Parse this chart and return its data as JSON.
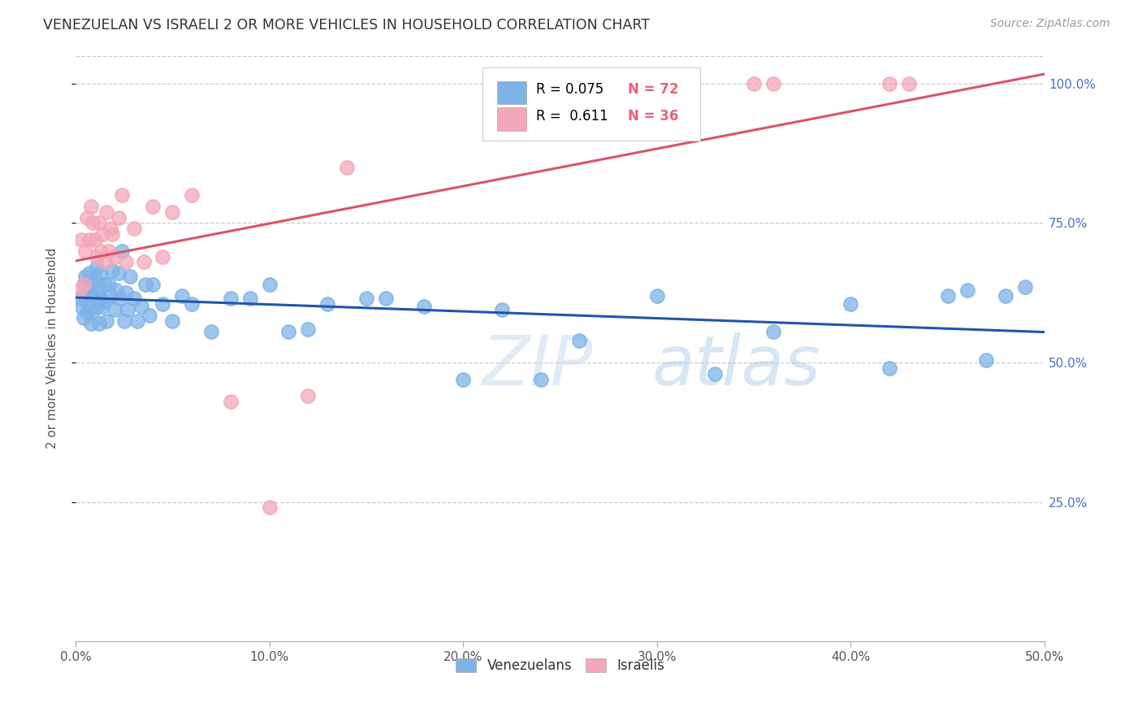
{
  "title": "VENEZUELAN VS ISRAELI 2 OR MORE VEHICLES IN HOUSEHOLD CORRELATION CHART",
  "source": "Source: ZipAtlas.com",
  "ylabel": "2 or more Vehicles in Household",
  "x_min": 0.0,
  "x_max": 0.5,
  "y_min": 0.0,
  "y_max": 1.05,
  "x_ticks": [
    0.0,
    0.1,
    0.2,
    0.3,
    0.4,
    0.5
  ],
  "x_tick_labels": [
    "0.0%",
    "10.0%",
    "20.0%",
    "30.0%",
    "40.0%",
    "50.0%"
  ],
  "y_ticks": [
    0.25,
    0.5,
    0.75,
    1.0
  ],
  "y_tick_labels": [
    "25.0%",
    "50.0%",
    "75.0%",
    "100.0%"
  ],
  "venezuelan_color": "#7EB3E8",
  "israeli_color": "#F4A7B9",
  "venezuelan_line_color": "#2255AA",
  "israeli_line_color": "#D9546A",
  "watermark": "ZIPatlas",
  "venezuelan_x": [
    0.002,
    0.003,
    0.004,
    0.004,
    0.005,
    0.005,
    0.006,
    0.006,
    0.007,
    0.007,
    0.008,
    0.008,
    0.009,
    0.009,
    0.01,
    0.01,
    0.011,
    0.011,
    0.012,
    0.012,
    0.013,
    0.013,
    0.014,
    0.015,
    0.015,
    0.016,
    0.017,
    0.018,
    0.019,
    0.02,
    0.021,
    0.022,
    0.023,
    0.024,
    0.025,
    0.026,
    0.027,
    0.028,
    0.03,
    0.032,
    0.034,
    0.036,
    0.038,
    0.04,
    0.045,
    0.05,
    0.055,
    0.06,
    0.07,
    0.08,
    0.09,
    0.1,
    0.11,
    0.12,
    0.13,
    0.15,
    0.16,
    0.18,
    0.2,
    0.22,
    0.24,
    0.26,
    0.3,
    0.33,
    0.36,
    0.4,
    0.42,
    0.45,
    0.46,
    0.47,
    0.48,
    0.49
  ],
  "venezuelan_y": [
    0.615,
    0.6,
    0.64,
    0.58,
    0.62,
    0.655,
    0.59,
    0.63,
    0.605,
    0.66,
    0.57,
    0.64,
    0.62,
    0.59,
    0.65,
    0.615,
    0.67,
    0.6,
    0.63,
    0.57,
    0.615,
    0.66,
    0.6,
    0.64,
    0.61,
    0.575,
    0.64,
    0.62,
    0.665,
    0.595,
    0.63,
    0.66,
    0.615,
    0.7,
    0.575,
    0.625,
    0.595,
    0.655,
    0.615,
    0.575,
    0.6,
    0.64,
    0.585,
    0.64,
    0.605,
    0.575,
    0.62,
    0.605,
    0.555,
    0.615,
    0.615,
    0.64,
    0.555,
    0.56,
    0.605,
    0.615,
    0.615,
    0.6,
    0.47,
    0.595,
    0.47,
    0.54,
    0.62,
    0.48,
    0.555,
    0.605,
    0.49,
    0.62,
    0.63,
    0.505,
    0.62,
    0.635
  ],
  "israeli_x": [
    0.002,
    0.003,
    0.004,
    0.005,
    0.006,
    0.007,
    0.008,
    0.009,
    0.01,
    0.011,
    0.012,
    0.013,
    0.014,
    0.015,
    0.016,
    0.017,
    0.018,
    0.019,
    0.02,
    0.022,
    0.024,
    0.026,
    0.03,
    0.035,
    0.04,
    0.045,
    0.05,
    0.06,
    0.08,
    0.1,
    0.12,
    0.14,
    0.35,
    0.36,
    0.42,
    0.43
  ],
  "israeli_y": [
    0.63,
    0.72,
    0.64,
    0.7,
    0.76,
    0.72,
    0.78,
    0.75,
    0.72,
    0.69,
    0.75,
    0.7,
    0.73,
    0.68,
    0.77,
    0.7,
    0.74,
    0.73,
    0.69,
    0.76,
    0.8,
    0.68,
    0.74,
    0.68,
    0.78,
    0.69,
    0.77,
    0.8,
    0.43,
    0.24,
    0.44,
    0.85,
    1.0,
    1.0,
    1.0,
    1.0
  ]
}
